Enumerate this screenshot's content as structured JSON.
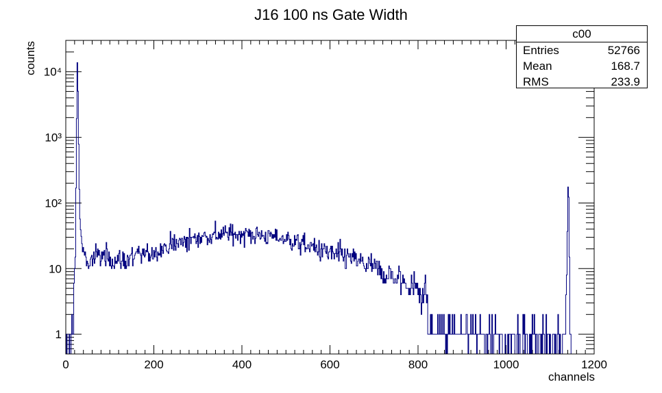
{
  "chart_data": {
    "type": "histogram",
    "title": "J16 100 ns Gate Width",
    "xlabel": "channels",
    "ylabel": "counts",
    "xlim": [
      0,
      1200
    ],
    "ylim": [
      0.5,
      30000
    ],
    "y_scale": "log",
    "grid": false,
    "x_ticks": [
      0,
      200,
      400,
      600,
      800,
      1000,
      1200
    ],
    "x_tick_labels": [
      "0",
      "200",
      "400",
      "600",
      "800",
      "1000",
      "1200"
    ],
    "y_ticks": [
      1,
      10,
      100,
      1000,
      10000
    ],
    "y_tick_labels": [
      "1",
      "10",
      "10²",
      "10³",
      "10⁴"
    ],
    "line_color": "#00007f",
    "series": [
      {
        "name": "c00",
        "envelope_x": [
          0,
          10,
          14,
          18,
          20,
          22,
          24,
          26,
          28,
          30,
          32,
          35,
          40,
          50,
          60,
          80,
          100,
          130,
          160,
          200,
          250,
          300,
          350,
          400,
          450,
          500,
          550,
          600,
          650,
          700,
          750,
          800,
          850,
          900,
          950,
          1000,
          1050,
          1100,
          1128,
          1134,
          1138,
          1141,
          1143,
          1145,
          1147,
          1150
        ],
        "envelope_y": [
          1,
          1,
          2,
          4,
          8,
          20,
          500,
          17000,
          4000,
          300,
          60,
          25,
          18,
          12,
          14,
          16,
          14,
          13,
          15,
          18,
          24,
          30,
          33,
          34,
          32,
          28,
          22,
          17,
          14,
          10,
          7,
          5,
          3,
          2,
          1.5,
          1,
          1,
          1,
          1,
          2,
          8,
          200,
          80,
          2,
          1,
          0
        ]
      }
    ],
    "stats": {
      "title": "c00",
      "entries_label": "Entries",
      "entries": "52766",
      "mean_label": "Mean",
      "mean": "168.7",
      "rms_label": "RMS",
      "rms": "233.9"
    }
  }
}
